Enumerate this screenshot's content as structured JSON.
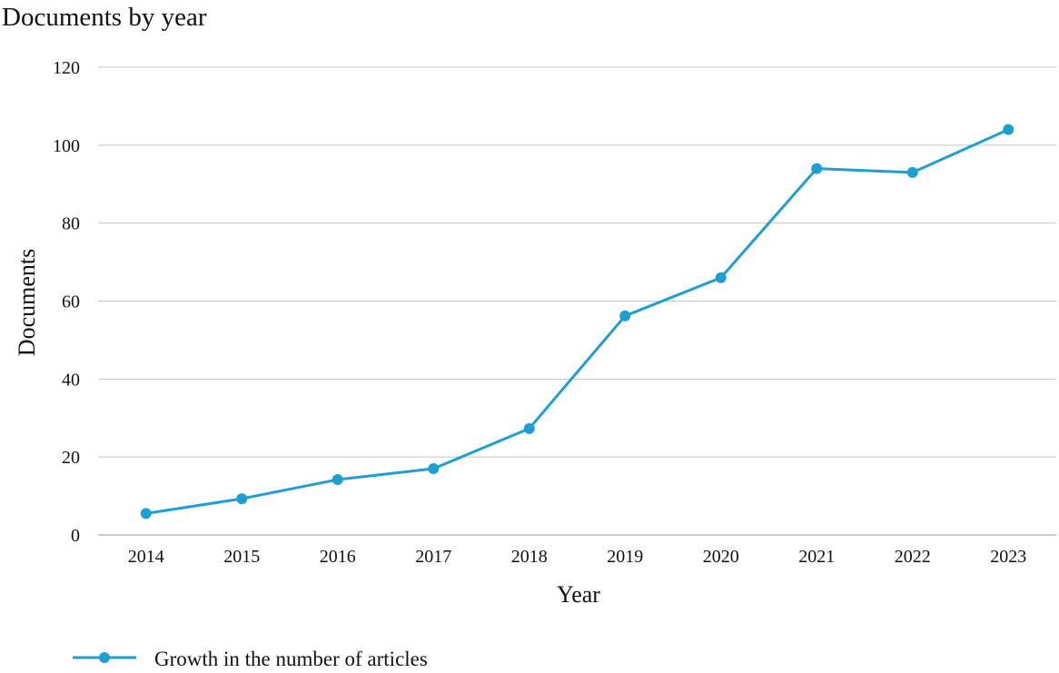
{
  "chart_data": {
    "type": "line",
    "title": "Documents by year",
    "xlabel": "Year",
    "ylabel": "Documents",
    "categories": [
      "2014",
      "2015",
      "2016",
      "2017",
      "2018",
      "2019",
      "2020",
      "2021",
      "2022",
      "2023"
    ],
    "series": [
      {
        "name": "Growth in the number of articles",
        "values": [
          5.5,
          9.3,
          14.2,
          17.0,
          27.3,
          56.2,
          66.0,
          94.0,
          93.0,
          104.0
        ],
        "color": "#1f9fd0",
        "marker": "circle"
      }
    ],
    "ylim": [
      0,
      120
    ],
    "yticks": [
      0,
      20,
      40,
      60,
      80,
      100,
      120
    ],
    "grid": "horizontal",
    "legend_position": "bottom-left"
  }
}
